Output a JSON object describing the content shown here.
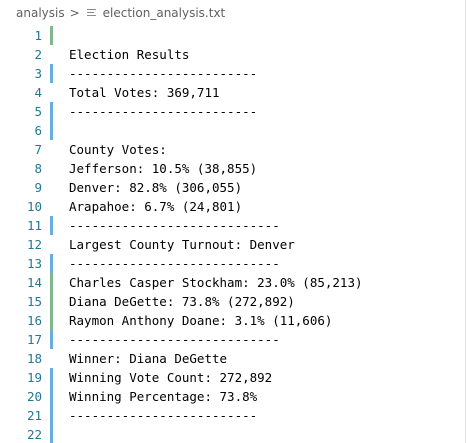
{
  "breadcrumb": {
    "folder": "analysis",
    "separator": ">",
    "file": "election_analysis.txt"
  },
  "colors": {
    "line_number": "#237893",
    "gutter_added": "#81b88b",
    "gutter_modified": "#66afe0"
  },
  "lines": [
    {
      "num": "1",
      "text": "",
      "gutter": "added"
    },
    {
      "num": "2",
      "text": "Election Results",
      "gutter": ""
    },
    {
      "num": "3",
      "text": "-------------------------",
      "gutter": "modified"
    },
    {
      "num": "4",
      "text": "Total Votes: 369,711",
      "gutter": ""
    },
    {
      "num": "5",
      "text": "-------------------------",
      "gutter": "modified"
    },
    {
      "num": "6",
      "text": "",
      "gutter": "modified"
    },
    {
      "num": "7",
      "text": "County Votes:",
      "gutter": ""
    },
    {
      "num": "8",
      "text": "Jefferson: 10.5% (38,855)",
      "gutter": ""
    },
    {
      "num": "9",
      "text": "Denver: 82.8% (306,055)",
      "gutter": ""
    },
    {
      "num": "10",
      "text": "Arapahoe: 6.7% (24,801)",
      "gutter": ""
    },
    {
      "num": "11",
      "text": "----------------------------",
      "gutter": "modified"
    },
    {
      "num": "12",
      "text": "Largest County Turnout: Denver",
      "gutter": ""
    },
    {
      "num": "13",
      "text": "----------------------------",
      "gutter": "modified"
    },
    {
      "num": "14",
      "text": "Charles Casper Stockham: 23.0% (85,213)",
      "gutter": "added"
    },
    {
      "num": "15",
      "text": "Diana DeGette: 73.8% (272,892)",
      "gutter": "added"
    },
    {
      "num": "16",
      "text": "Raymon Anthony Doane: 3.1% (11,606)",
      "gutter": "added"
    },
    {
      "num": "17",
      "text": "----------------------------",
      "gutter": "modified"
    },
    {
      "num": "18",
      "text": "Winner: Diana DeGette",
      "gutter": ""
    },
    {
      "num": "19",
      "text": "Winning Vote Count: 272,892",
      "gutter": "modified"
    },
    {
      "num": "20",
      "text": "Winning Percentage: 73.8%",
      "gutter": "modified"
    },
    {
      "num": "21",
      "text": "-------------------------",
      "gutter": "modified"
    },
    {
      "num": "22",
      "text": "",
      "gutter": "modified"
    }
  ]
}
